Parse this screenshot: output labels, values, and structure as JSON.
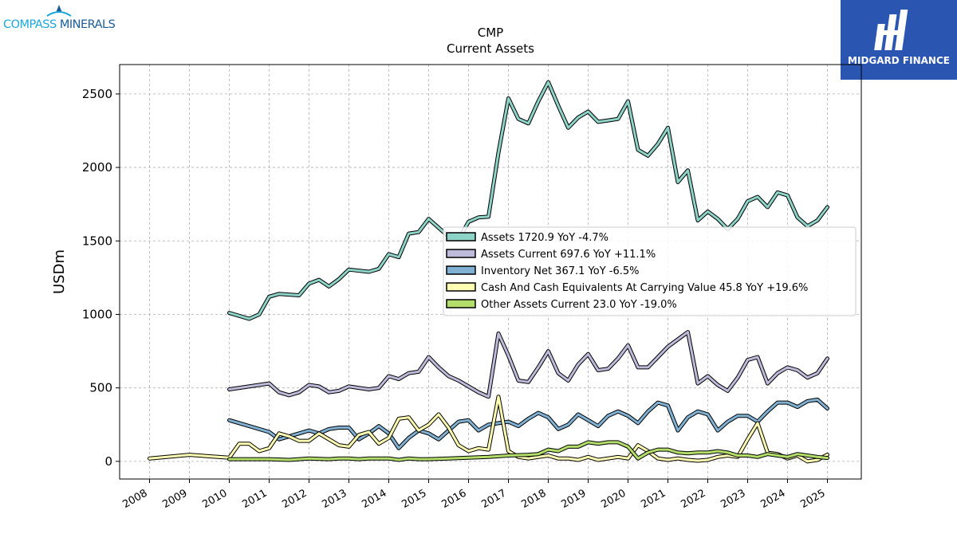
{
  "logos": {
    "left_text_a": "COMPASS",
    "left_text_b": "MINERALS",
    "right_text": "MIDGARD FINANCE"
  },
  "chart_data": {
    "type": "line",
    "title": "CMP",
    "subtitle": "Current  Assets",
    "xlabel": "",
    "ylabel": "USDm",
    "xlim": [
      2007.25,
      2025.85
    ],
    "ylim": [
      -120,
      2700
    ],
    "x_ticks": [
      "2008",
      "2009",
      "2010",
      "2011",
      "2012",
      "2013",
      "2014",
      "2015",
      "2016",
      "2017",
      "2018",
      "2019",
      "2020",
      "2021",
      "2022",
      "2023",
      "2024",
      "2025"
    ],
    "y_ticks": [
      0,
      500,
      1000,
      1500,
      2000,
      2500
    ],
    "grid": true,
    "legend_position": "center-right",
    "legend": [
      "Assets  1720.9 YoY -4.7%",
      "Assets Current  697.6 YoY +11.1%",
      "Inventory Net  367.1 YoY -6.5%",
      "Cash And Cash Equivalents At Carrying Value  45.8 YoY +19.6%",
      "Other Assets Current  23.0 YoY -19.0%"
    ],
    "series": [
      {
        "name": "Assets",
        "color": "#8dd3c7",
        "points": [
          [
            2010.0,
            1010
          ],
          [
            2010.5,
            970
          ],
          [
            2010.75,
            1000
          ],
          [
            2011.0,
            1120
          ],
          [
            2011.25,
            1140
          ],
          [
            2011.75,
            1130
          ],
          [
            2012.0,
            1210
          ],
          [
            2012.25,
            1235
          ],
          [
            2012.5,
            1190
          ],
          [
            2012.75,
            1240
          ],
          [
            2013.0,
            1305
          ],
          [
            2013.5,
            1290
          ],
          [
            2013.75,
            1310
          ],
          [
            2014.0,
            1410
          ],
          [
            2014.25,
            1390
          ],
          [
            2014.5,
            1550
          ],
          [
            2014.75,
            1560
          ],
          [
            2015.0,
            1650
          ],
          [
            2015.25,
            1590
          ],
          [
            2015.5,
            1530
          ],
          [
            2015.75,
            1510
          ],
          [
            2016.0,
            1630
          ],
          [
            2016.25,
            1660
          ],
          [
            2016.5,
            1665
          ],
          [
            2016.75,
            2100
          ],
          [
            2017.0,
            2470
          ],
          [
            2017.25,
            2330
          ],
          [
            2017.5,
            2300
          ],
          [
            2017.75,
            2450
          ],
          [
            2018.0,
            2580
          ],
          [
            2018.25,
            2420
          ],
          [
            2018.5,
            2270
          ],
          [
            2018.75,
            2340
          ],
          [
            2019.0,
            2380
          ],
          [
            2019.25,
            2310
          ],
          [
            2019.5,
            2320
          ],
          [
            2019.75,
            2330
          ],
          [
            2020.0,
            2450
          ],
          [
            2020.25,
            2120
          ],
          [
            2020.5,
            2080
          ],
          [
            2020.75,
            2160
          ],
          [
            2021.0,
            2270
          ],
          [
            2021.25,
            1900
          ],
          [
            2021.5,
            1980
          ],
          [
            2021.75,
            1640
          ],
          [
            2022.0,
            1700
          ],
          [
            2022.25,
            1650
          ],
          [
            2022.5,
            1580
          ],
          [
            2022.75,
            1650
          ],
          [
            2023.0,
            1770
          ],
          [
            2023.25,
            1800
          ],
          [
            2023.5,
            1730
          ],
          [
            2023.75,
            1830
          ],
          [
            2024.0,
            1810
          ],
          [
            2024.25,
            1660
          ],
          [
            2024.5,
            1600
          ],
          [
            2024.75,
            1640
          ],
          [
            2025.0,
            1730
          ]
        ]
      },
      {
        "name": "Assets Current",
        "color": "#bebada",
        "points": [
          [
            2010.0,
            490
          ],
          [
            2011.0,
            530
          ],
          [
            2011.25,
            470
          ],
          [
            2011.5,
            450
          ],
          [
            2011.75,
            470
          ],
          [
            2012.0,
            520
          ],
          [
            2012.25,
            510
          ],
          [
            2012.5,
            470
          ],
          [
            2012.75,
            480
          ],
          [
            2013.0,
            510
          ],
          [
            2013.25,
            500
          ],
          [
            2013.5,
            490
          ],
          [
            2013.75,
            500
          ],
          [
            2014.0,
            580
          ],
          [
            2014.25,
            560
          ],
          [
            2014.5,
            600
          ],
          [
            2014.75,
            610
          ],
          [
            2015.0,
            710
          ],
          [
            2015.25,
            640
          ],
          [
            2015.5,
            580
          ],
          [
            2015.75,
            550
          ],
          [
            2016.0,
            510
          ],
          [
            2016.25,
            470
          ],
          [
            2016.5,
            440
          ],
          [
            2016.75,
            870
          ],
          [
            2017.0,
            720
          ],
          [
            2017.25,
            550
          ],
          [
            2017.5,
            540
          ],
          [
            2017.75,
            640
          ],
          [
            2018.0,
            750
          ],
          [
            2018.25,
            600
          ],
          [
            2018.5,
            550
          ],
          [
            2018.75,
            660
          ],
          [
            2019.0,
            730
          ],
          [
            2019.25,
            620
          ],
          [
            2019.5,
            630
          ],
          [
            2019.75,
            700
          ],
          [
            2020.0,
            790
          ],
          [
            2020.25,
            640
          ],
          [
            2020.5,
            640
          ],
          [
            2020.75,
            710
          ],
          [
            2021.0,
            780
          ],
          [
            2021.25,
            830
          ],
          [
            2021.5,
            880
          ],
          [
            2021.75,
            530
          ],
          [
            2022.0,
            580
          ],
          [
            2022.25,
            520
          ],
          [
            2022.5,
            480
          ],
          [
            2022.75,
            570
          ],
          [
            2023.0,
            690
          ],
          [
            2023.25,
            710
          ],
          [
            2023.5,
            530
          ],
          [
            2023.75,
            600
          ],
          [
            2024.0,
            640
          ],
          [
            2024.25,
            620
          ],
          [
            2024.5,
            570
          ],
          [
            2024.75,
            600
          ],
          [
            2025.0,
            700
          ]
        ]
      },
      {
        "name": "Inventory Net",
        "color": "#80b1d3",
        "points": [
          [
            2010.0,
            280
          ],
          [
            2011.0,
            200
          ],
          [
            2011.25,
            150
          ],
          [
            2012.0,
            210
          ],
          [
            2012.25,
            190
          ],
          [
            2012.5,
            220
          ],
          [
            2012.75,
            230
          ],
          [
            2013.0,
            230
          ],
          [
            2013.25,
            150
          ],
          [
            2013.5,
            190
          ],
          [
            2013.75,
            240
          ],
          [
            2014.0,
            190
          ],
          [
            2014.25,
            90
          ],
          [
            2014.5,
            160
          ],
          [
            2014.75,
            210
          ],
          [
            2015.0,
            190
          ],
          [
            2015.25,
            150
          ],
          [
            2015.5,
            210
          ],
          [
            2015.75,
            270
          ],
          [
            2016.0,
            280
          ],
          [
            2016.25,
            210
          ],
          [
            2016.5,
            250
          ],
          [
            2016.75,
            260
          ],
          [
            2017.0,
            270
          ],
          [
            2017.25,
            240
          ],
          [
            2017.5,
            290
          ],
          [
            2017.75,
            330
          ],
          [
            2018.0,
            300
          ],
          [
            2018.25,
            220
          ],
          [
            2018.5,
            250
          ],
          [
            2018.75,
            320
          ],
          [
            2019.0,
            280
          ],
          [
            2019.25,
            240
          ],
          [
            2019.5,
            310
          ],
          [
            2019.75,
            340
          ],
          [
            2020.0,
            310
          ],
          [
            2020.25,
            260
          ],
          [
            2020.5,
            340
          ],
          [
            2020.75,
            400
          ],
          [
            2021.0,
            380
          ],
          [
            2021.25,
            210
          ],
          [
            2021.5,
            300
          ],
          [
            2021.75,
            340
          ],
          [
            2022.0,
            320
          ],
          [
            2022.25,
            210
          ],
          [
            2022.5,
            270
          ],
          [
            2022.75,
            310
          ],
          [
            2023.0,
            310
          ],
          [
            2023.25,
            270
          ],
          [
            2023.5,
            340
          ],
          [
            2023.75,
            400
          ],
          [
            2024.0,
            400
          ],
          [
            2024.25,
            370
          ],
          [
            2024.5,
            410
          ],
          [
            2024.75,
            420
          ],
          [
            2025.0,
            360
          ]
        ]
      },
      {
        "name": "Cash And Cash Equivalents At Carrying Value",
        "color": "#ffffb3",
        "points": [
          [
            2008.0,
            20
          ],
          [
            2009.0,
            45
          ],
          [
            2010.0,
            25
          ],
          [
            2010.25,
            120
          ],
          [
            2010.5,
            120
          ],
          [
            2010.75,
            70
          ],
          [
            2011.0,
            90
          ],
          [
            2011.25,
            190
          ],
          [
            2011.5,
            170
          ],
          [
            2011.75,
            140
          ],
          [
            2012.0,
            140
          ],
          [
            2012.25,
            190
          ],
          [
            2012.5,
            150
          ],
          [
            2012.75,
            110
          ],
          [
            2013.0,
            100
          ],
          [
            2013.25,
            180
          ],
          [
            2013.5,
            200
          ],
          [
            2013.75,
            120
          ],
          [
            2014.0,
            160
          ],
          [
            2014.25,
            290
          ],
          [
            2014.5,
            300
          ],
          [
            2014.75,
            210
          ],
          [
            2015.0,
            250
          ],
          [
            2015.25,
            320
          ],
          [
            2015.5,
            230
          ],
          [
            2015.75,
            110
          ],
          [
            2016.0,
            70
          ],
          [
            2016.25,
            90
          ],
          [
            2016.5,
            80
          ],
          [
            2016.75,
            440
          ],
          [
            2017.0,
            70
          ],
          [
            2017.25,
            30
          ],
          [
            2017.5,
            20
          ],
          [
            2017.75,
            30
          ],
          [
            2018.0,
            40
          ],
          [
            2018.25,
            20
          ],
          [
            2018.5,
            20
          ],
          [
            2018.75,
            10
          ],
          [
            2019.0,
            30
          ],
          [
            2019.25,
            10
          ],
          [
            2019.5,
            20
          ],
          [
            2019.75,
            30
          ],
          [
            2020.0,
            20
          ],
          [
            2020.25,
            110
          ],
          [
            2020.5,
            70
          ],
          [
            2020.75,
            20
          ],
          [
            2021.0,
            10
          ],
          [
            2021.25,
            20
          ],
          [
            2021.5,
            10
          ],
          [
            2021.75,
            5
          ],
          [
            2022.0,
            10
          ],
          [
            2022.25,
            30
          ],
          [
            2022.5,
            40
          ],
          [
            2022.75,
            30
          ],
          [
            2023.0,
            150
          ],
          [
            2023.25,
            260
          ],
          [
            2023.5,
            60
          ],
          [
            2023.75,
            50
          ],
          [
            2024.0,
            20
          ],
          [
            2024.25,
            40
          ],
          [
            2024.5,
            0
          ],
          [
            2024.75,
            10
          ],
          [
            2025.0,
            46
          ]
        ]
      },
      {
        "name": "Other Assets Current",
        "color": "#b3de69",
        "points": [
          [
            2010.0,
            15
          ],
          [
            2011.0,
            15
          ],
          [
            2011.5,
            10
          ],
          [
            2012.0,
            20
          ],
          [
            2012.5,
            15
          ],
          [
            2012.75,
            20
          ],
          [
            2013.0,
            20
          ],
          [
            2013.25,
            15
          ],
          [
            2013.5,
            20
          ],
          [
            2014.0,
            20
          ],
          [
            2014.25,
            10
          ],
          [
            2014.5,
            20
          ],
          [
            2014.75,
            15
          ],
          [
            2015.0,
            15
          ],
          [
            2015.5,
            20
          ],
          [
            2016.0,
            25
          ],
          [
            2016.5,
            30
          ],
          [
            2017.0,
            40
          ],
          [
            2017.5,
            45
          ],
          [
            2017.75,
            50
          ],
          [
            2018.0,
            80
          ],
          [
            2018.25,
            70
          ],
          [
            2018.5,
            100
          ],
          [
            2018.75,
            100
          ],
          [
            2019.0,
            130
          ],
          [
            2019.25,
            120
          ],
          [
            2019.5,
            130
          ],
          [
            2019.75,
            130
          ],
          [
            2020.0,
            100
          ],
          [
            2020.25,
            20
          ],
          [
            2020.5,
            60
          ],
          [
            2020.75,
            80
          ],
          [
            2021.0,
            80
          ],
          [
            2021.25,
            60
          ],
          [
            2021.5,
            55
          ],
          [
            2021.75,
            60
          ],
          [
            2022.0,
            60
          ],
          [
            2022.25,
            70
          ],
          [
            2022.5,
            60
          ],
          [
            2022.75,
            40
          ],
          [
            2023.0,
            40
          ],
          [
            2023.25,
            30
          ],
          [
            2023.5,
            50
          ],
          [
            2023.75,
            40
          ],
          [
            2024.0,
            30
          ],
          [
            2024.25,
            50
          ],
          [
            2024.5,
            40
          ],
          [
            2024.75,
            30
          ],
          [
            2025.0,
            23
          ]
        ]
      }
    ]
  }
}
